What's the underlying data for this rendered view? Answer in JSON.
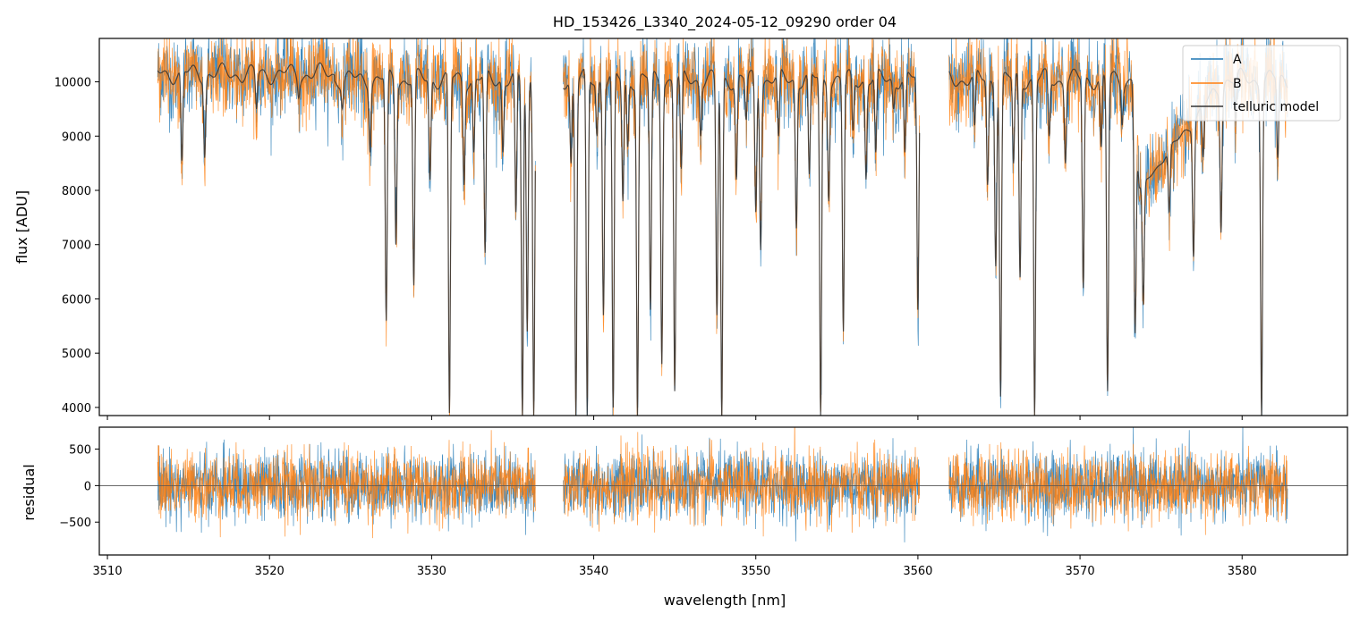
{
  "chart_data": [
    {
      "type": "line",
      "panel": "top",
      "title": "HD_153426_L3340_2024-05-12_09290  order 04",
      "xlabel": "",
      "ylabel": "flux [ADU]",
      "xlim": [
        3509.5,
        3586.5
      ],
      "ylim": [
        3850,
        10800
      ],
      "yticks": [
        4000,
        5000,
        6000,
        7000,
        8000,
        9000,
        10000
      ],
      "xticks": [
        3510,
        3520,
        3530,
        3540,
        3550,
        3560,
        3570,
        3580
      ],
      "x_tick_labels_shown": false,
      "legend_position": "top-right",
      "gaps": [
        [
          3536.4,
          3538.1
        ],
        [
          3560.1,
          3561.9
        ]
      ],
      "x_range": [
        3513.1,
        3582.8
      ],
      "series": [
        {
          "name": "A",
          "color": "#1f77b4",
          "kind": "observed flux, noisy around continuum ~10000"
        },
        {
          "name": "B",
          "color": "#ff7f0e",
          "kind": "observed flux, noisy around continuum ~10000"
        },
        {
          "name": "telluric model",
          "color": "#333333",
          "kind": "smooth model"
        }
      ],
      "absorption_lines": [
        {
          "x": 3514.6,
          "min": 8550
        },
        {
          "x": 3516.0,
          "min": 8600
        },
        {
          "x": 3519.2,
          "min": 9500
        },
        {
          "x": 3521.8,
          "min": 9700
        },
        {
          "x": 3524.5,
          "min": 9500
        },
        {
          "x": 3526.2,
          "min": 8700
        },
        {
          "x": 3527.2,
          "min": 5600
        },
        {
          "x": 3527.8,
          "min": 7000
        },
        {
          "x": 3528.9,
          "min": 6250
        },
        {
          "x": 3529.9,
          "min": 8200
        },
        {
          "x": 3531.1,
          "min": 3900
        },
        {
          "x": 3532.0,
          "min": 8100
        },
        {
          "x": 3532.6,
          "min": 8700
        },
        {
          "x": 3533.3,
          "min": 6850
        },
        {
          "x": 3534.4,
          "min": 8700
        },
        {
          "x": 3535.2,
          "min": 7600
        },
        {
          "x": 3535.6,
          "min": 3850
        },
        {
          "x": 3535.9,
          "min": 5400
        },
        {
          "x": 3536.3,
          "min": 3850
        },
        {
          "x": 3538.6,
          "min": 8500
        },
        {
          "x": 3538.9,
          "min": 3850
        },
        {
          "x": 3539.6,
          "min": 3850
        },
        {
          "x": 3540.2,
          "min": 9000
        },
        {
          "x": 3540.6,
          "min": 5700
        },
        {
          "x": 3541.2,
          "min": 4000
        },
        {
          "x": 3541.8,
          "min": 7800
        },
        {
          "x": 3542.1,
          "min": 8800
        },
        {
          "x": 3542.7,
          "min": 3850
        },
        {
          "x": 3543.5,
          "min": 5800
        },
        {
          "x": 3544.2,
          "min": 4800
        },
        {
          "x": 3545.0,
          "min": 4300
        },
        {
          "x": 3545.4,
          "min": 8400
        },
        {
          "x": 3546.6,
          "min": 9000
        },
        {
          "x": 3547.6,
          "min": 5700
        },
        {
          "x": 3547.9,
          "min": 3850
        },
        {
          "x": 3548.8,
          "min": 8200
        },
        {
          "x": 3549.4,
          "min": 9300
        },
        {
          "x": 3550.0,
          "min": 7600
        },
        {
          "x": 3550.3,
          "min": 6900
        },
        {
          "x": 3551.4,
          "min": 9000
        },
        {
          "x": 3552.5,
          "min": 7300
        },
        {
          "x": 3553.3,
          "min": 8300
        },
        {
          "x": 3554.0,
          "min": 3850
        },
        {
          "x": 3554.5,
          "min": 7800
        },
        {
          "x": 3555.4,
          "min": 5400
        },
        {
          "x": 3556.0,
          "min": 9100
        },
        {
          "x": 3556.8,
          "min": 8200
        },
        {
          "x": 3557.4,
          "min": 8700
        },
        {
          "x": 3558.5,
          "min": 9500
        },
        {
          "x": 3559.2,
          "min": 8700
        },
        {
          "x": 3560.0,
          "min": 5800
        },
        {
          "x": 3563.5,
          "min": 9200
        },
        {
          "x": 3564.3,
          "min": 8100
        },
        {
          "x": 3564.8,
          "min": 6600
        },
        {
          "x": 3565.1,
          "min": 4200
        },
        {
          "x": 3565.9,
          "min": 8500
        },
        {
          "x": 3566.3,
          "min": 6400
        },
        {
          "x": 3567.2,
          "min": 3850
        },
        {
          "x": 3568.1,
          "min": 9000
        },
        {
          "x": 3569.1,
          "min": 8500
        },
        {
          "x": 3570.2,
          "min": 6200
        },
        {
          "x": 3571.3,
          "min": 8800
        },
        {
          "x": 3571.7,
          "min": 4300
        },
        {
          "x": 3572.6,
          "min": 9200
        },
        {
          "x": 3573.4,
          "min": 5900
        },
        {
          "x": 3573.9,
          "min": 7400
        },
        {
          "x": 3575.5,
          "min": 8800
        },
        {
          "x": 3577.0,
          "min": 7300
        },
        {
          "x": 3577.6,
          "min": 9100
        },
        {
          "x": 3578.7,
          "min": 7300
        },
        {
          "x": 3579.6,
          "min": 9300
        },
        {
          "x": 3581.2,
          "min": 3850
        },
        {
          "x": 3582.2,
          "min": 8600
        }
      ],
      "broad_feature": {
        "x_range": [
          3573.2,
          3579.0
        ],
        "min": 7600
      }
    },
    {
      "type": "line",
      "panel": "bottom",
      "title": "",
      "xlabel": "wavelength [nm]",
      "ylabel": "residual",
      "xlim": [
        3509.5,
        3586.5
      ],
      "ylim": [
        -950,
        800
      ],
      "yticks": [
        -500,
        0,
        500
      ],
      "xticks": [
        3510,
        3520,
        3530,
        3540,
        3550,
        3560,
        3570,
        3580
      ],
      "zero_line": true,
      "gaps": [
        [
          3536.4,
          3538.1
        ],
        [
          3560.1,
          3561.9
        ]
      ],
      "series": [
        {
          "name": "A",
          "color": "#1f77b4",
          "noise_sigma": 230
        },
        {
          "name": "B",
          "color": "#ff7f0e",
          "noise_sigma": 230
        }
      ]
    }
  ]
}
